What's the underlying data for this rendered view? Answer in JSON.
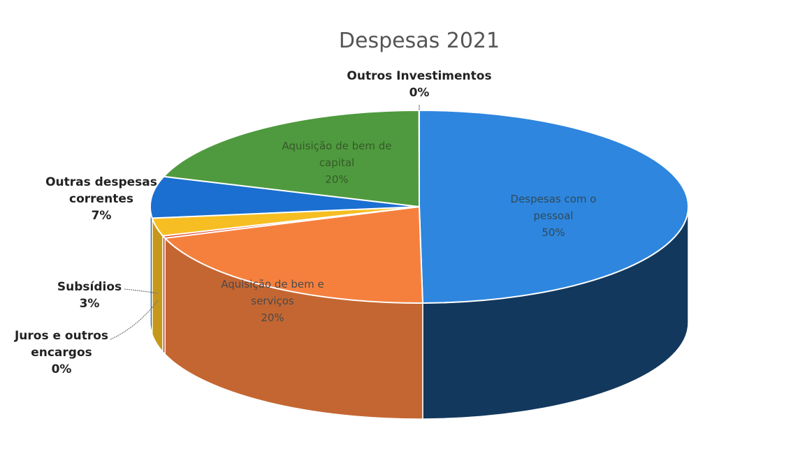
{
  "chart_data": {
    "type": "pie",
    "title": "Despesas 2021",
    "slices": [
      {
        "label": "Despesas com o pessoal",
        "label_lines": [
          "Despesas com o",
          "pessoal"
        ],
        "pct_label": "50%",
        "value": 50,
        "color": "#2e86de",
        "label_position": "inside"
      },
      {
        "label": "Aquisição de bem e serviços",
        "label_lines": [
          "Aquisição de bem e",
          "serviços"
        ],
        "pct_label": "20%",
        "value": 20,
        "color": "#f5803e",
        "label_position": "inside"
      },
      {
        "label": "Juros e outros encargos",
        "label_lines": [
          "Juros e outros",
          "encargos"
        ],
        "pct_label": "0%",
        "value": 0.4,
        "color": "#e03c1c",
        "label_position": "outside-left"
      },
      {
        "label": "Subsídios",
        "label_lines": [
          "Subsídios"
        ],
        "pct_label": "3%",
        "value": 3,
        "color": "#f6be22",
        "label_position": "outside-left"
      },
      {
        "label": "Outras despesas correntes",
        "label_lines": [
          "Outras despesas",
          "correntes"
        ],
        "pct_label": "7%",
        "value": 7,
        "color": "#1b6fd0",
        "label_position": "outside-left"
      },
      {
        "label": "Aquisição de bem de capital",
        "label_lines": [
          "Aquisição de bem de",
          "capital"
        ],
        "pct_label": "20%",
        "value": 20,
        "color": "#4f9a3e",
        "label_position": "inside"
      },
      {
        "label": "Outros Investimentos",
        "label_lines": [
          "Outros Investimentos"
        ],
        "pct_label": "0%",
        "value": 0.01,
        "color": "#7fbf5a",
        "label_position": "outside-top"
      }
    ],
    "style": "3d-pie",
    "legend": "none"
  }
}
